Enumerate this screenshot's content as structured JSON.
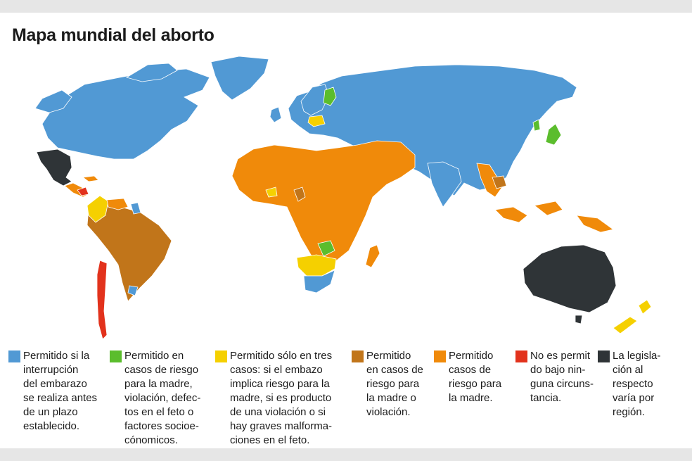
{
  "title": "Mapa mundial del aborto",
  "colors": {
    "ocean": "#ffffff",
    "blue": "#5199d4",
    "green": "#5bbd2d",
    "yellow": "#f5d000",
    "brown": "#c1751a",
    "orange": "#f08a0a",
    "red": "#e2321c",
    "dark": "#2f3437",
    "border": "#ffffff"
  },
  "legend": [
    {
      "color": "#5199d4",
      "text": "Permitido si la\ninterrupción\ndel embarazo\nse realiza antes\nde un plazo\nestablecido."
    },
    {
      "color": "#5bbd2d",
      "text": "Permitido en\ncasos de riesgo\npara la madre,\nviolación, defec-\ntos en el feto o\nfactores socioe-\ncónomicos."
    },
    {
      "color": "#f5d000",
      "text": "Permitido sólo en tres\ncasos: si el embazo\nimplica riesgo para la\nmadre, si es producto\nde una violación o si\nhay graves malforma-\nciones en el feto."
    },
    {
      "color": "#c1751a",
      "text": "Permitido\nen casos de\nriesgo para\nla madre o\nviolación."
    },
    {
      "color": "#f08a0a",
      "text": "Permitido\ncasos de\nriesgo para\nla madre."
    },
    {
      "color": "#e2321c",
      "text": "No es permit\ndo bajo nin-\nguna circuns-\ntancia."
    },
    {
      "color": "#2f3437",
      "text": "La legisla-\nción al\nrespecto\nvaría por\nregión."
    }
  ]
}
